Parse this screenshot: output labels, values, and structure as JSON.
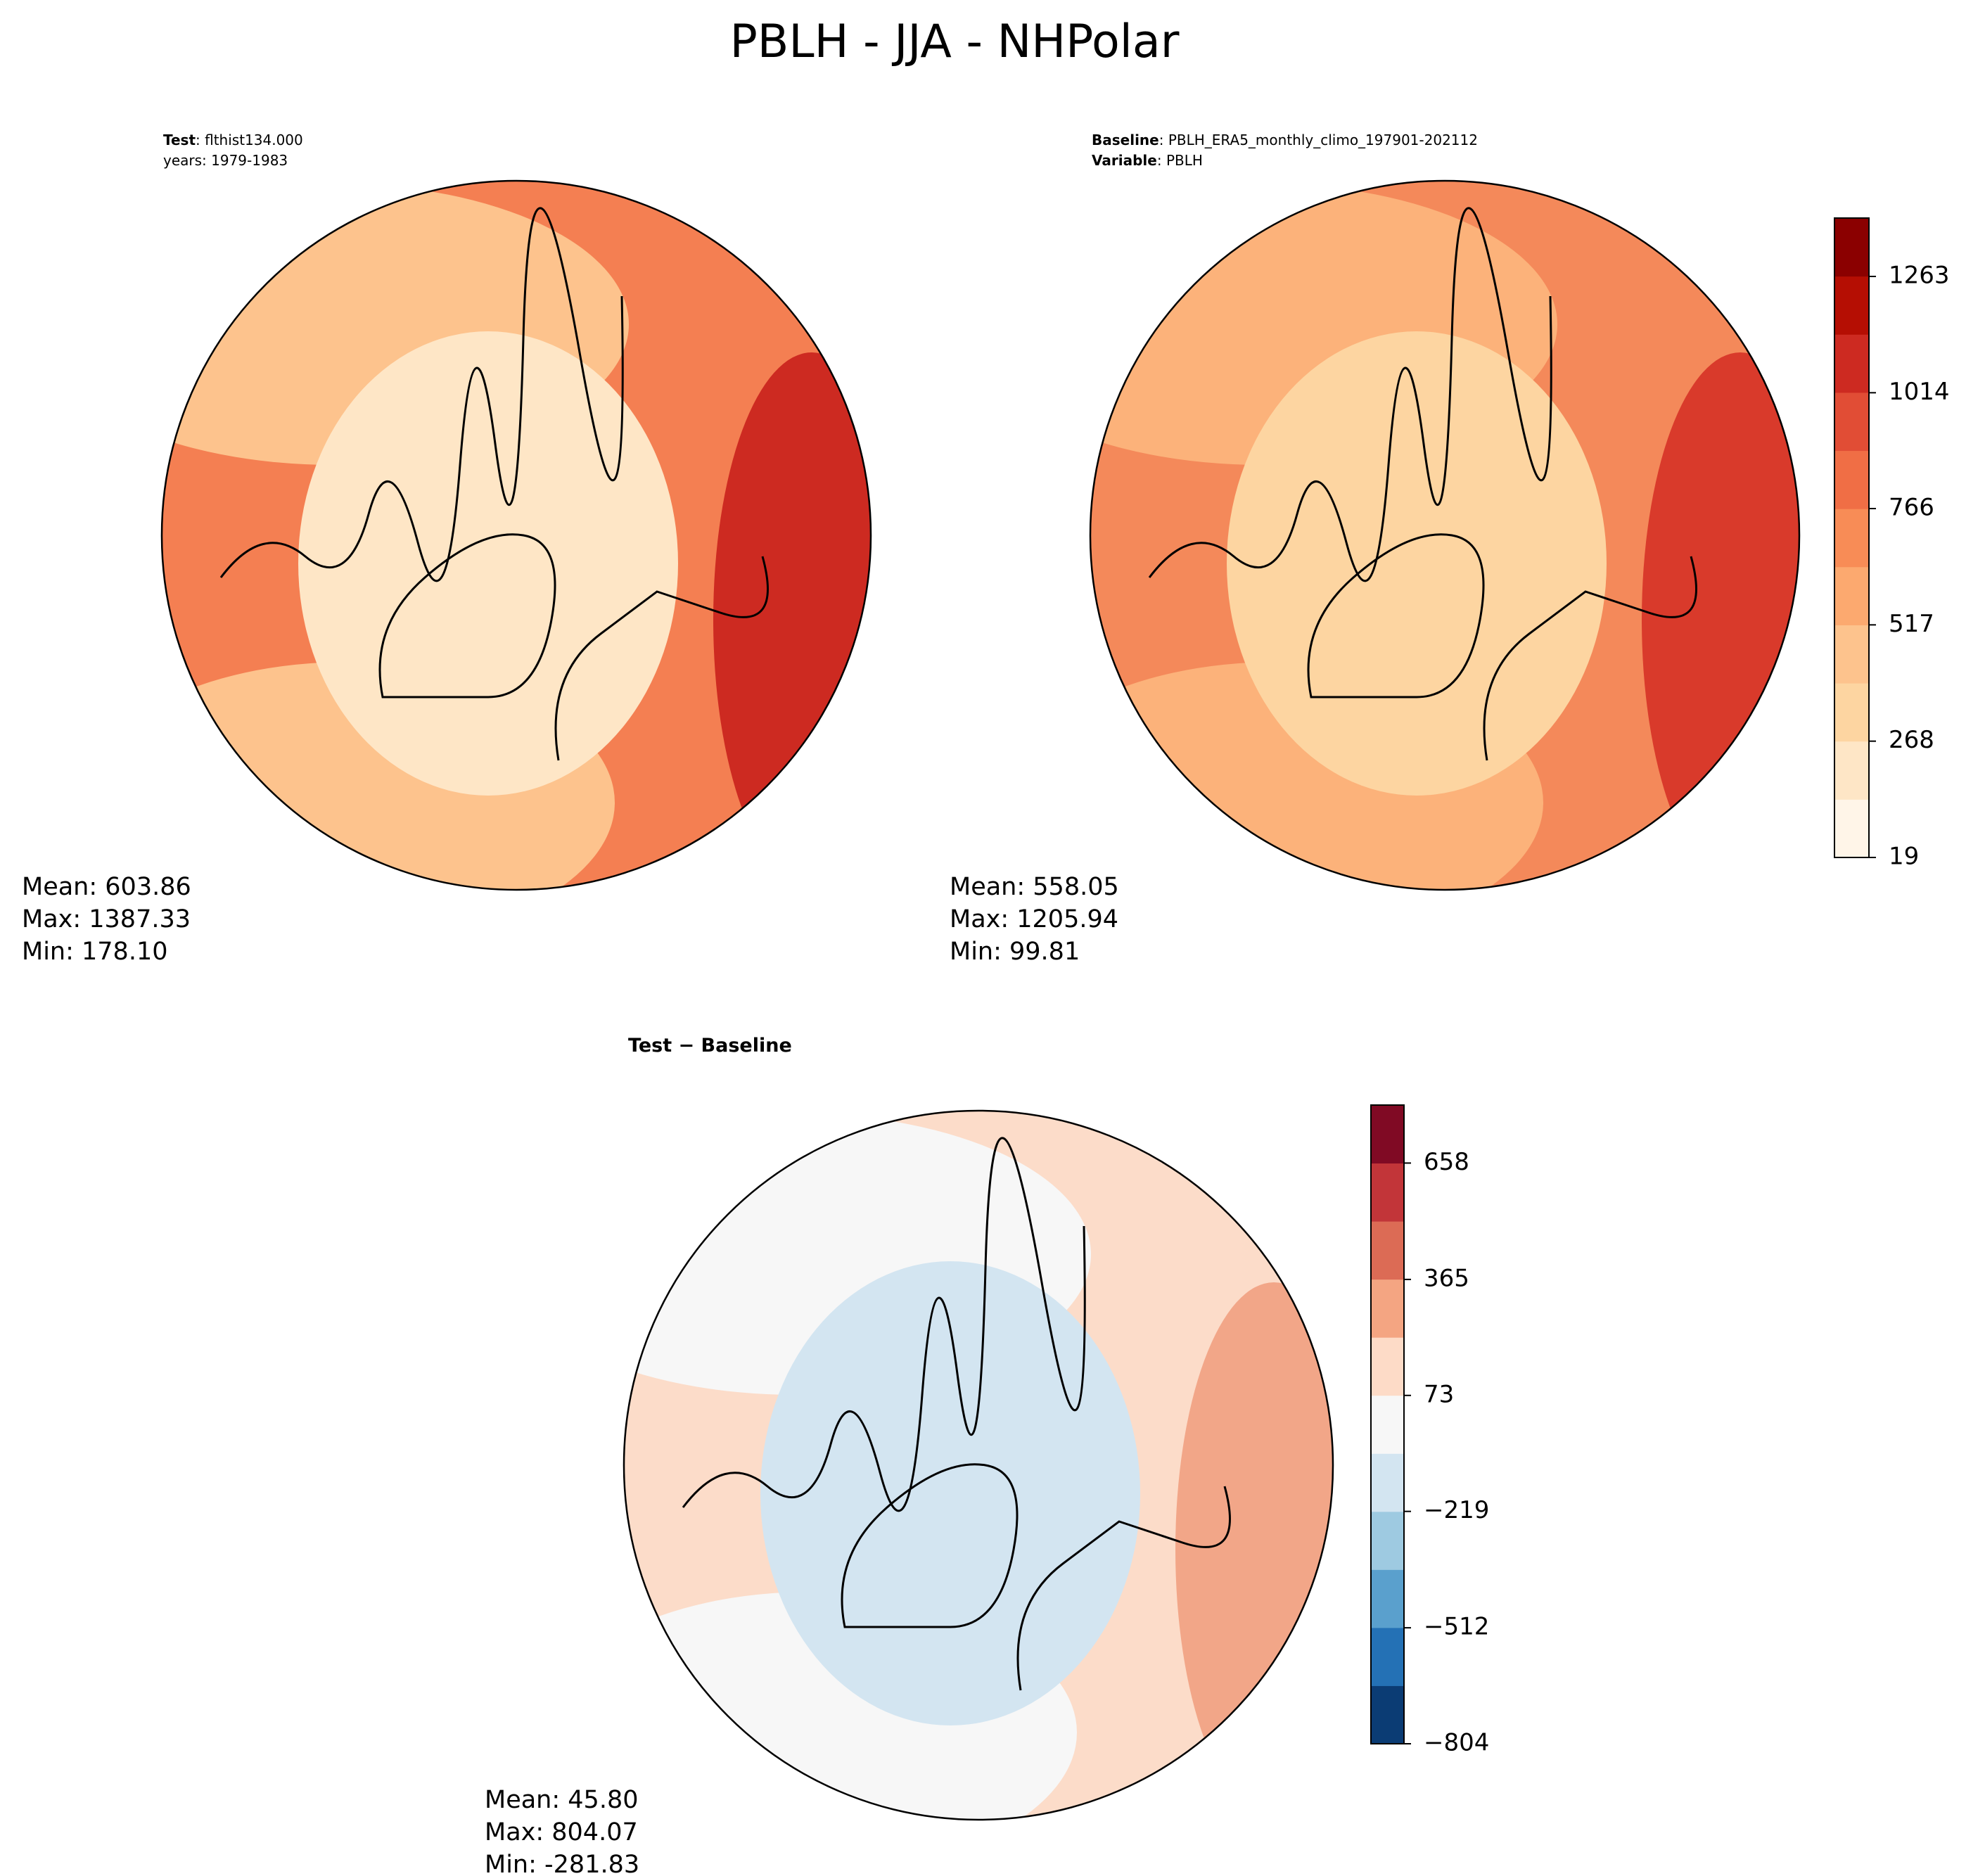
{
  "title": "PBLH - JJA - NHPolar",
  "panels": [
    {
      "lines": [
        [
          {
            "text": "Test",
            "bold": true
          },
          {
            "text": ": flthist134.000"
          }
        ],
        [
          {
            "text": "years: 1979-1983"
          }
        ]
      ],
      "stats": [
        "Mean: 603.86",
        "Max: 1387.33",
        "Min: 178.10"
      ]
    },
    {
      "lines": [
        [
          {
            "text": "Baseline",
            "bold": true
          },
          {
            "text": ": PBLH_ERA5_monthly_climo_197901-202112"
          }
        ],
        [
          {
            "text": "Variable",
            "bold": true
          },
          {
            "text": ": PBLH"
          }
        ]
      ],
      "stats": [
        "Mean: 558.05",
        "Max: 1205.94",
        "Min: 99.81"
      ],
      "colorbar": {
        "clim": [
          19,
          1388
        ],
        "ticks": [
          19,
          268,
          517,
          766,
          1014,
          1263
        ],
        "colors": [
          "#fff5e8",
          "#fee6c6",
          "#fdd5a1",
          "#fdc38d",
          "#fca96f",
          "#f88c56",
          "#f06e45",
          "#e14d35",
          "#cd2a21",
          "#b50e03",
          "#8b0000"
        ]
      }
    },
    {
      "lines": [
        [
          {
            "text": "Test − Baseline",
            "bold": true
          }
        ]
      ],
      "stats": [
        "Mean: 45.80",
        "Max: 804.07",
        "Min: -281.83"
      ],
      "colorbar": {
        "clim": [
          -804,
          804
        ],
        "ticks": [
          {
            "value": -804,
            "label": "−804"
          },
          {
            "value": -512,
            "label": "−512"
          },
          {
            "value": -219,
            "label": "−219"
          },
          73,
          365,
          658
        ],
        "colors": [
          "#0b3c74",
          "#2471b5",
          "#5aa0cd",
          "#9ecae1",
          "#d3e5f1",
          "#f7f7f7",
          "#fddbc7",
          "#f4a582",
          "#dc6b55",
          "#c23539",
          "#800a24"
        ]
      }
    }
  ]
}
